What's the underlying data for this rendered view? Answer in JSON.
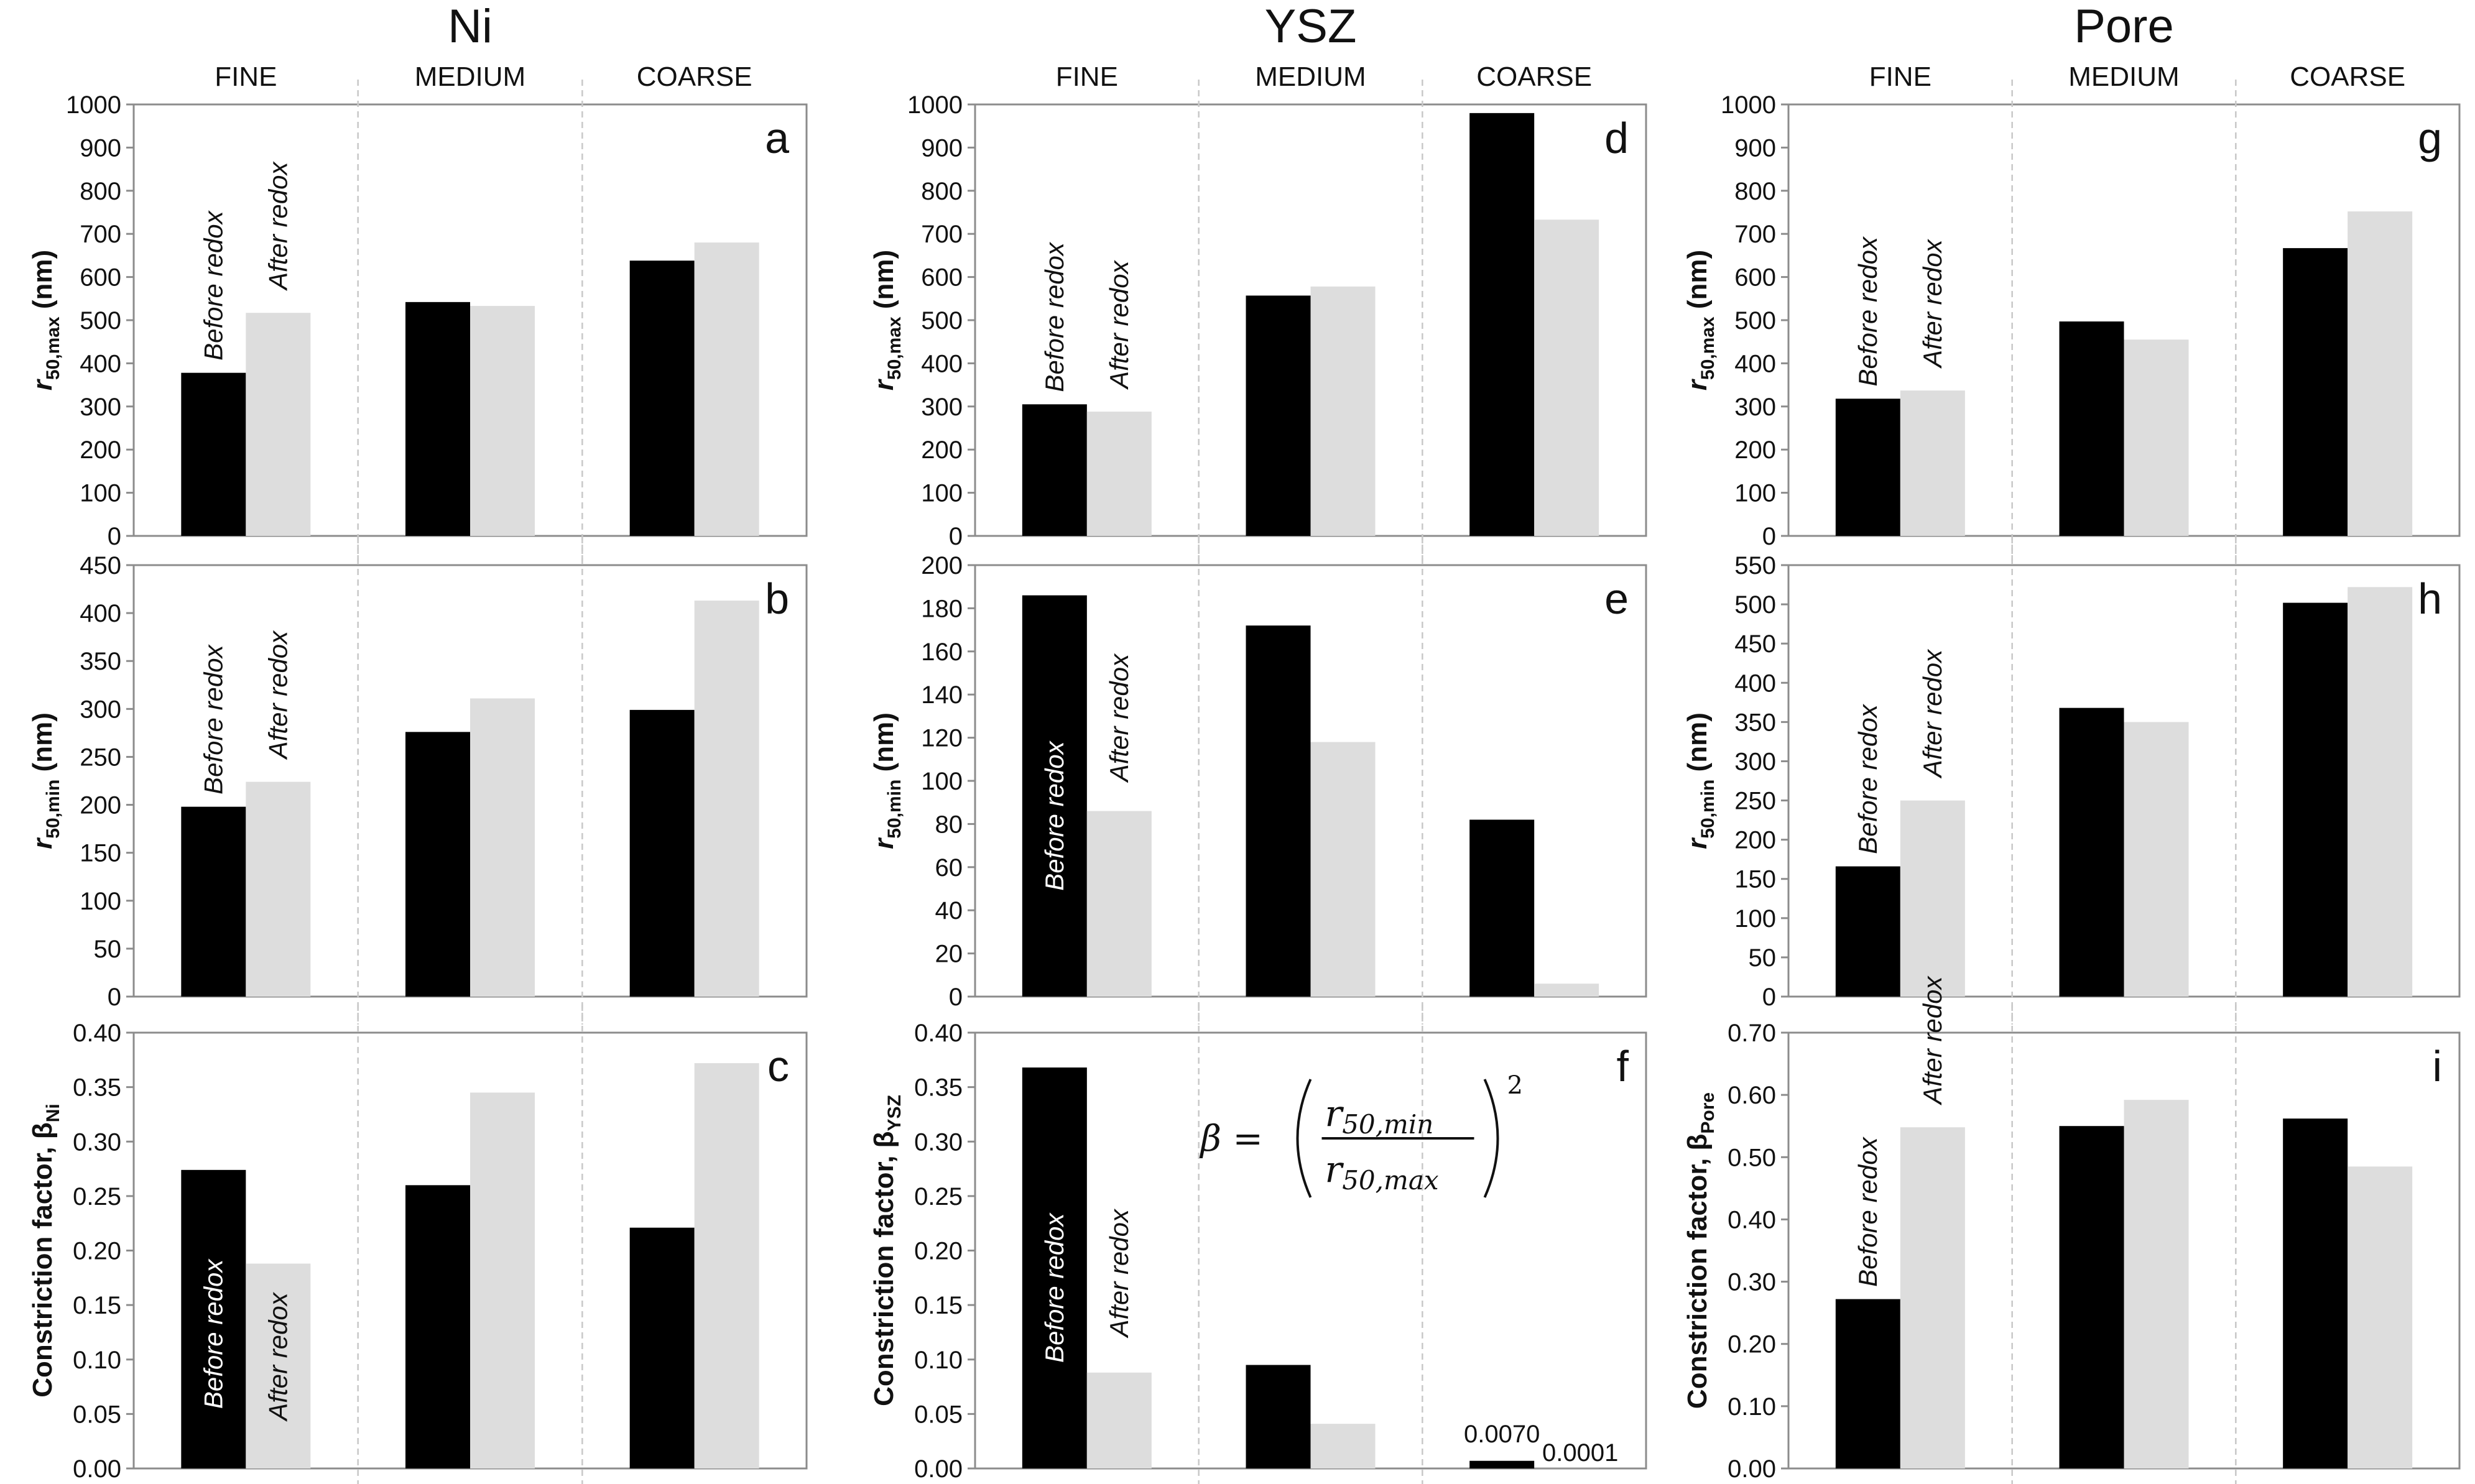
{
  "colors": {
    "before": "#000000",
    "after": "#dddddd",
    "frame": "#8c8c8c",
    "divider": "#c8c8c8",
    "background": "#ffffff"
  },
  "columns": [
    {
      "title": "Ni",
      "categories": [
        "FINE",
        "MEDIUM",
        "COARSE"
      ]
    },
    {
      "title": "YSZ",
      "categories": [
        "FINE",
        "MEDIUM",
        "COARSE"
      ]
    },
    {
      "title": "Pore",
      "categories": [
        "FINE",
        "MEDIUM",
        "COARSE"
      ]
    }
  ],
  "chart_data": [
    {
      "id": "a",
      "type": "bar",
      "column": 0,
      "row": 0,
      "ylabel": {
        "main": "r",
        "sub": "50,max",
        "tail": " (nm)"
      },
      "ylim": [
        0,
        1000
      ],
      "ticks": [
        "0",
        "100",
        "200",
        "300",
        "400",
        "500",
        "600",
        "700",
        "800",
        "900",
        "1000"
      ],
      "categories": [
        "FINE",
        "MEDIUM",
        "COARSE"
      ],
      "series": [
        {
          "name": "Before redox",
          "values": [
            378,
            542,
            638
          ]
        },
        {
          "name": "After redox",
          "values": [
            517,
            533,
            680
          ]
        }
      ],
      "annotations": {
        "before": "Before redox",
        "after": "After redox"
      }
    },
    {
      "id": "b",
      "type": "bar",
      "column": 0,
      "row": 1,
      "ylabel": {
        "main": "r",
        "sub": "50,min",
        "tail": " (nm)"
      },
      "ylim": [
        0,
        450
      ],
      "ticks": [
        "0",
        "50",
        "100",
        "150",
        "200",
        "250",
        "300",
        "350",
        "400",
        "450"
      ],
      "categories": [
        "FINE",
        "MEDIUM",
        "COARSE"
      ],
      "series": [
        {
          "name": "Before redox",
          "values": [
            198,
            276,
            299
          ]
        },
        {
          "name": "After redox",
          "values": [
            224,
            311,
            413
          ]
        }
      ],
      "annotations": {
        "before": "Before redox",
        "after": "After redox"
      }
    },
    {
      "id": "c",
      "type": "bar",
      "column": 0,
      "row": 2,
      "ylabel": {
        "main": "Constriction factor, β",
        "sub": "Ni",
        "tail": ""
      },
      "ylim": [
        0,
        0.4
      ],
      "ticks": [
        "0.00",
        "0.05",
        "0.10",
        "0.15",
        "0.20",
        "0.25",
        "0.30",
        "0.35",
        "0.40"
      ],
      "categories": [
        "FINE",
        "MEDIUM",
        "COARSE"
      ],
      "series": [
        {
          "name": "Before redox",
          "values": [
            0.274,
            0.26,
            0.221
          ]
        },
        {
          "name": "After redox",
          "values": [
            0.188,
            0.345,
            0.372
          ]
        }
      ],
      "annotations": {
        "before": "Before redox",
        "after": "After redox"
      }
    },
    {
      "id": "d",
      "type": "bar",
      "column": 1,
      "row": 0,
      "ylabel": {
        "main": "r",
        "sub": "50,max",
        "tail": " (nm)"
      },
      "ylim": [
        0,
        1000
      ],
      "ticks": [
        "0",
        "100",
        "200",
        "300",
        "400",
        "500",
        "600",
        "700",
        "800",
        "900",
        "1000"
      ],
      "categories": [
        "FINE",
        "MEDIUM",
        "COARSE"
      ],
      "series": [
        {
          "name": "Before redox",
          "values": [
            305,
            557,
            980
          ]
        },
        {
          "name": "After redox",
          "values": [
            288,
            578,
            733
          ]
        }
      ],
      "annotations": {
        "before": "Before redox",
        "after": "After redox"
      }
    },
    {
      "id": "e",
      "type": "bar",
      "column": 1,
      "row": 1,
      "ylabel": {
        "main": "r",
        "sub": "50,min",
        "tail": " (nm)"
      },
      "ylim": [
        0,
        200
      ],
      "ticks": [
        "0",
        "20",
        "40",
        "60",
        "80",
        "100",
        "120",
        "140",
        "160",
        "180",
        "200"
      ],
      "categories": [
        "FINE",
        "MEDIUM",
        "COARSE"
      ],
      "series": [
        {
          "name": "Before redox",
          "values": [
            186,
            172,
            82
          ]
        },
        {
          "name": "After redox",
          "values": [
            86,
            118,
            6
          ]
        }
      ],
      "annotations": {
        "before": "Before redox",
        "after": "After redox"
      }
    },
    {
      "id": "f",
      "type": "bar",
      "column": 1,
      "row": 2,
      "ylabel": {
        "main": "Constriction factor, β",
        "sub": "YSZ",
        "tail": ""
      },
      "ylim": [
        0,
        0.4
      ],
      "ticks": [
        "0.00",
        "0.05",
        "0.10",
        "0.15",
        "0.20",
        "0.25",
        "0.30",
        "0.35",
        "0.40"
      ],
      "categories": [
        "FINE",
        "MEDIUM",
        "COARSE"
      ],
      "series": [
        {
          "name": "Before redox",
          "values": [
            0.368,
            0.095,
            0.007
          ]
        },
        {
          "name": "After redox",
          "values": [
            0.088,
            0.041,
            0.0001
          ]
        }
      ],
      "annotations": {
        "before": "Before redox",
        "after": "After redox"
      },
      "value_labels": {
        "before": "0.0070",
        "after": "0.0001"
      },
      "formula": {
        "lhs": "β =",
        "numerator": "r",
        "numerator_sub": "50,min",
        "denominator": "r",
        "denominator_sub": "50,max",
        "power": "2"
      }
    },
    {
      "id": "g",
      "type": "bar",
      "column": 2,
      "row": 0,
      "ylabel": {
        "main": "r",
        "sub": "50,max",
        "tail": " (nm)"
      },
      "ylim": [
        0,
        1000
      ],
      "ticks": [
        "0",
        "100",
        "200",
        "300",
        "400",
        "500",
        "600",
        "700",
        "800",
        "900",
        "1000"
      ],
      "categories": [
        "FINE",
        "MEDIUM",
        "COARSE"
      ],
      "series": [
        {
          "name": "Before redox",
          "values": [
            318,
            497,
            667
          ]
        },
        {
          "name": "After redox",
          "values": [
            337,
            455,
            752
          ]
        }
      ],
      "annotations": {
        "before": "Before redox",
        "after": "After redox"
      }
    },
    {
      "id": "h",
      "type": "bar",
      "column": 2,
      "row": 1,
      "ylabel": {
        "main": "r",
        "sub": "50,min",
        "tail": " (nm)"
      },
      "ylim": [
        0,
        550
      ],
      "ticks": [
        "0",
        "50",
        "100",
        "150",
        "200",
        "250",
        "300",
        "350",
        "400",
        "450",
        "500",
        "550"
      ],
      "categories": [
        "FINE",
        "MEDIUM",
        "COARSE"
      ],
      "series": [
        {
          "name": "Before redox",
          "values": [
            166,
            368,
            502
          ]
        },
        {
          "name": "After redox",
          "values": [
            250,
            350,
            522
          ]
        }
      ],
      "annotations": {
        "before": "Before redox",
        "after": "After redox"
      }
    },
    {
      "id": "i",
      "type": "bar",
      "column": 2,
      "row": 2,
      "ylabel": {
        "main": "Constriction factor, β",
        "sub": "Pore",
        "tail": ""
      },
      "ylim": [
        0,
        0.7
      ],
      "ticks": [
        "0.00",
        "0.10",
        "0.20",
        "0.30",
        "0.40",
        "0.50",
        "0.60",
        "0.70"
      ],
      "categories": [
        "FINE",
        "MEDIUM",
        "COARSE"
      ],
      "series": [
        {
          "name": "Before redox",
          "values": [
            0.272,
            0.55,
            0.562
          ]
        },
        {
          "name": "After redox",
          "values": [
            0.548,
            0.592,
            0.485
          ]
        }
      ],
      "annotations": {
        "before": "Before redox",
        "after": "After redox"
      }
    }
  ]
}
